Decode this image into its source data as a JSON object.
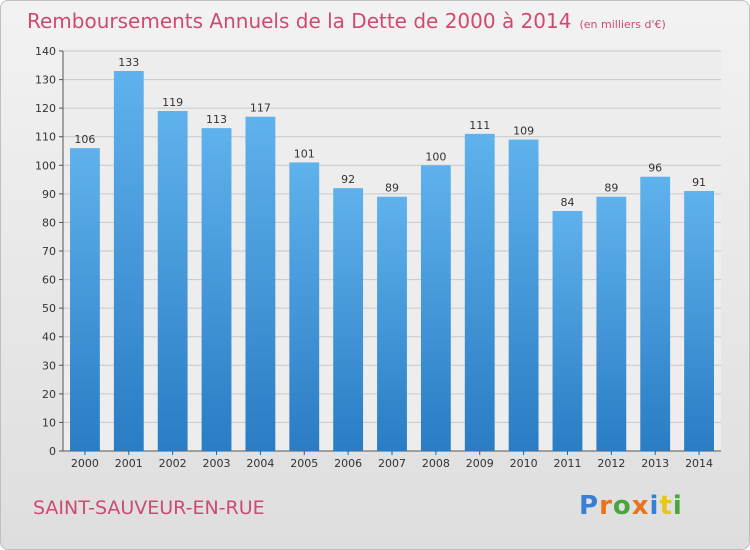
{
  "chart_data": {
    "type": "bar",
    "title": "Remboursements Annuels de la Dette de 2000 à 2014",
    "subtitle": "(en milliers d'€)",
    "categories": [
      "2000",
      "2001",
      "2002",
      "2003",
      "2004",
      "2005",
      "2006",
      "2007",
      "2008",
      "2009",
      "2010",
      "2011",
      "2012",
      "2013",
      "2014"
    ],
    "values": [
      106,
      133,
      119,
      113,
      117,
      101,
      92,
      89,
      100,
      111,
      109,
      84,
      89,
      96,
      91
    ],
    "ylim": [
      0,
      140
    ],
    "yticks": [
      0,
      10,
      20,
      30,
      40,
      50,
      60,
      70,
      80,
      90,
      100,
      110,
      120,
      130,
      140
    ],
    "grid": true,
    "bar_color": "#3a8fd6"
  },
  "place_name": "SAINT-SAUVEUR-EN-RUE",
  "logo": {
    "text": "Proxiti",
    "colors": [
      "#3a7fd5",
      "#e8731c",
      "#4aa63b",
      "#e8731c",
      "#3a7fd5",
      "#e8c51c",
      "#4aa63b"
    ]
  },
  "accent_color": "#cf4a6e"
}
